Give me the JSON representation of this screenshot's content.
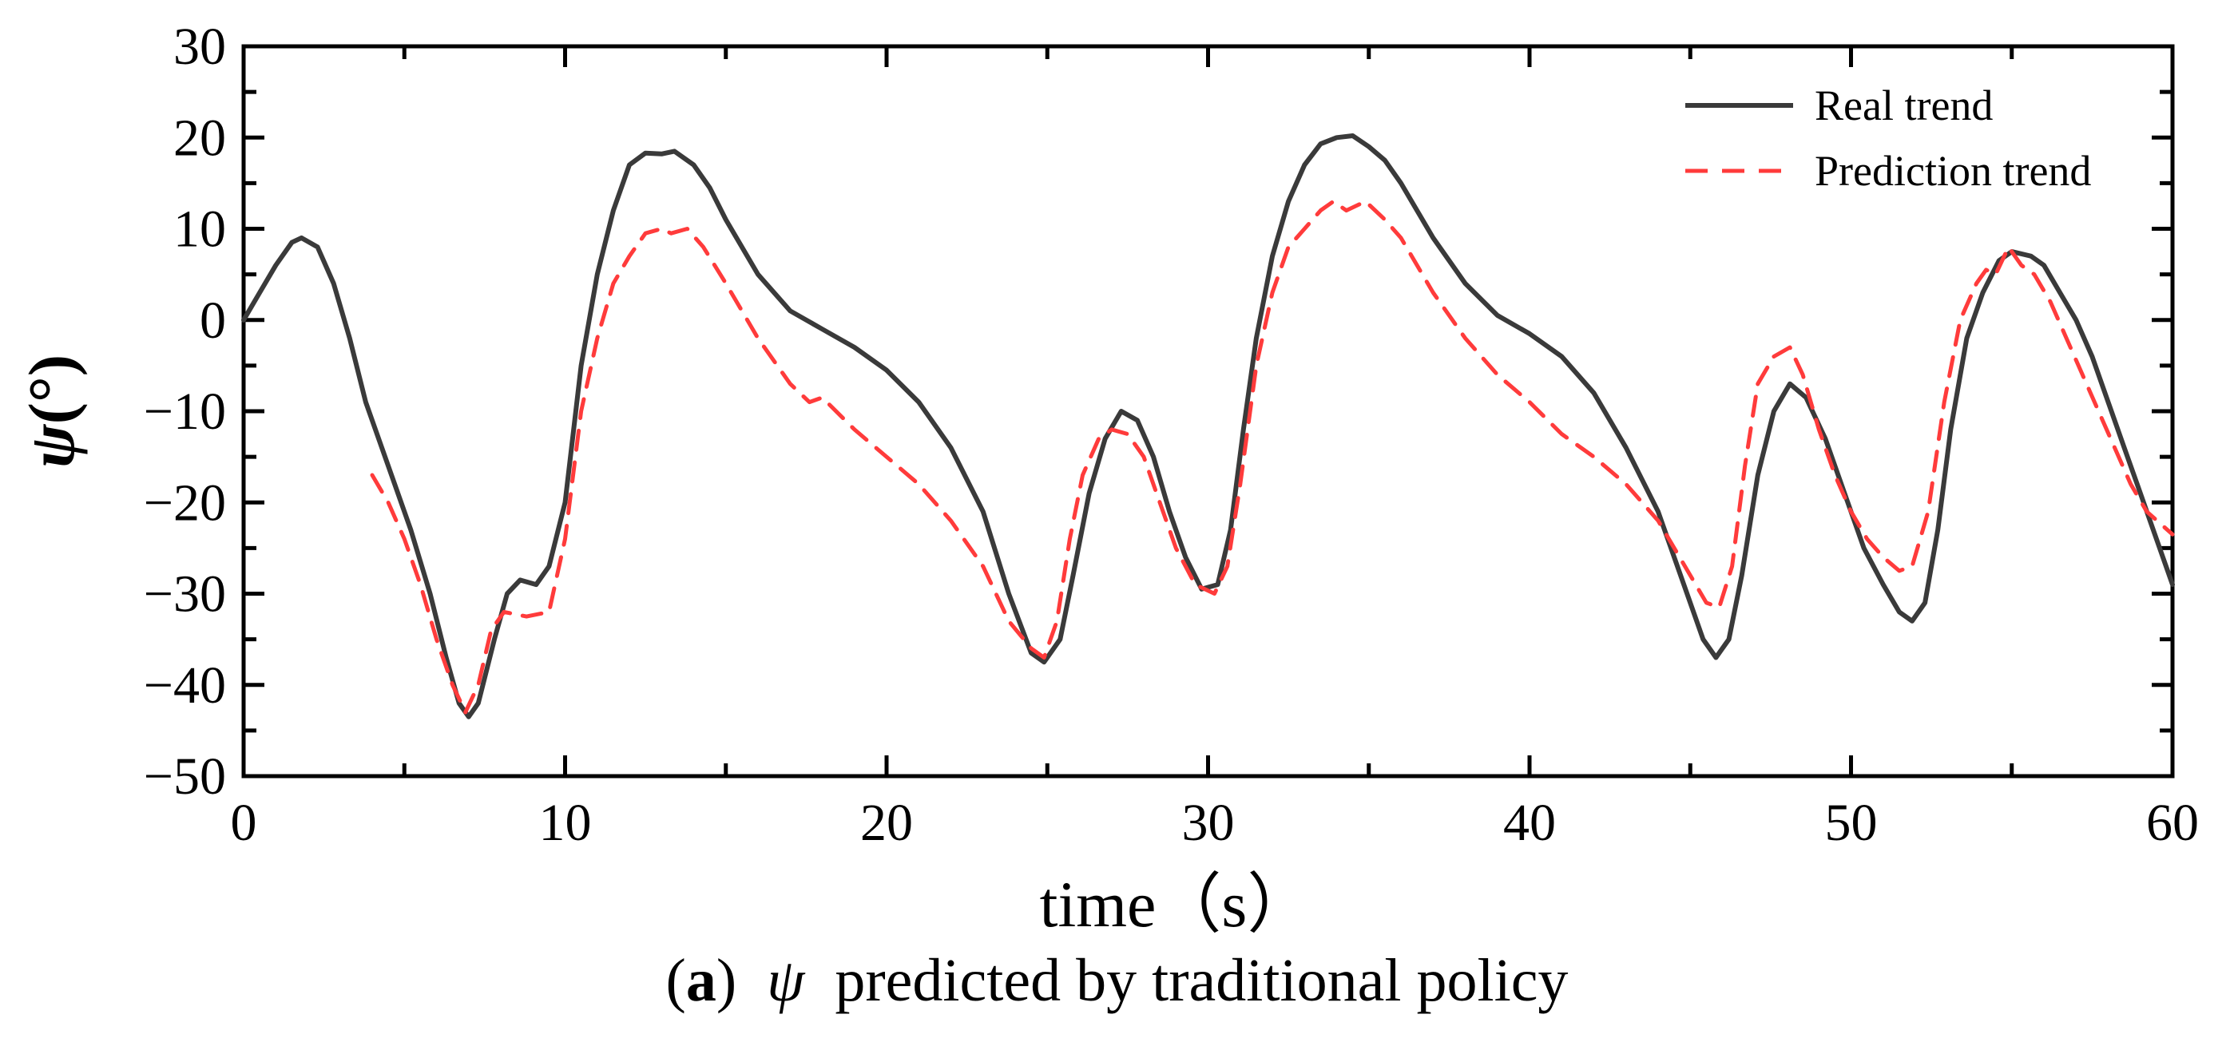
{
  "chart_data": {
    "type": "line",
    "title": "",
    "xlabel": "time（s）",
    "ylabel_symbol": "ψ",
    "ylabel_unit": "(°)",
    "xlim": [
      0,
      60
    ],
    "ylim": [
      -50,
      30
    ],
    "xticks": [
      0,
      10,
      20,
      30,
      40,
      50,
      60
    ],
    "yticks": [
      30,
      20,
      10,
      0,
      -10,
      -20,
      -30,
      -40,
      -50
    ],
    "ytick_labels": [
      "30",
      "20",
      "10",
      "0",
      "−10",
      "−20",
      "−30",
      "−40",
      "−50"
    ],
    "grid": false,
    "legend_position": "top-right",
    "series": [
      {
        "name": "Real trend",
        "color": "#3a3a3a",
        "dash": "solid",
        "points": [
          [
            0,
            0
          ],
          [
            0.5,
            3
          ],
          [
            1,
            6
          ],
          [
            1.5,
            8.5
          ],
          [
            1.8,
            9
          ],
          [
            2.3,
            8
          ],
          [
            2.8,
            4
          ],
          [
            3.3,
            -2
          ],
          [
            3.8,
            -9
          ],
          [
            4.5,
            -16
          ],
          [
            5.2,
            -23
          ],
          [
            5.8,
            -30
          ],
          [
            6.3,
            -37
          ],
          [
            6.7,
            -42
          ],
          [
            7,
            -43.5
          ],
          [
            7.3,
            -42
          ],
          [
            7.8,
            -35
          ],
          [
            8.2,
            -30
          ],
          [
            8.6,
            -28.5
          ],
          [
            9.1,
            -29
          ],
          [
            9.5,
            -27
          ],
          [
            10,
            -20
          ],
          [
            10.5,
            -5
          ],
          [
            11,
            5
          ],
          [
            11.5,
            12
          ],
          [
            12,
            17
          ],
          [
            12.5,
            18.3
          ],
          [
            13,
            18.2
          ],
          [
            13.4,
            18.5
          ],
          [
            14,
            17
          ],
          [
            14.5,
            14.5
          ],
          [
            15,
            11
          ],
          [
            16,
            5
          ],
          [
            17,
            1
          ],
          [
            18,
            -1
          ],
          [
            19,
            -3
          ],
          [
            20,
            -5.5
          ],
          [
            21,
            -9
          ],
          [
            22,
            -14
          ],
          [
            23,
            -21
          ],
          [
            23.8,
            -30
          ],
          [
            24.5,
            -36.5
          ],
          [
            24.9,
            -37.5
          ],
          [
            25.4,
            -35
          ],
          [
            25.8,
            -28
          ],
          [
            26.3,
            -19
          ],
          [
            26.8,
            -13
          ],
          [
            27.3,
            -10
          ],
          [
            27.8,
            -11
          ],
          [
            28.3,
            -15
          ],
          [
            28.8,
            -21
          ],
          [
            29.3,
            -26
          ],
          [
            29.8,
            -29.5
          ],
          [
            30.3,
            -29
          ],
          [
            30.7,
            -23
          ],
          [
            31.1,
            -12
          ],
          [
            31.5,
            -2
          ],
          [
            32,
            7
          ],
          [
            32.5,
            13
          ],
          [
            33,
            17
          ],
          [
            33.5,
            19.3
          ],
          [
            34,
            20
          ],
          [
            34.5,
            20.2
          ],
          [
            35,
            19
          ],
          [
            35.5,
            17.5
          ],
          [
            36,
            15
          ],
          [
            37,
            9
          ],
          [
            38,
            4
          ],
          [
            39,
            0.5
          ],
          [
            40,
            -1.5
          ],
          [
            41,
            -4
          ],
          [
            42,
            -8
          ],
          [
            43,
            -14
          ],
          [
            44,
            -21
          ],
          [
            44.8,
            -29
          ],
          [
            45.4,
            -35
          ],
          [
            45.8,
            -37
          ],
          [
            46.2,
            -35
          ],
          [
            46.6,
            -28
          ],
          [
            47.1,
            -17
          ],
          [
            47.6,
            -10
          ],
          [
            48.1,
            -7
          ],
          [
            48.6,
            -8.5
          ],
          [
            49.2,
            -13
          ],
          [
            49.8,
            -19
          ],
          [
            50.4,
            -25
          ],
          [
            51,
            -29
          ],
          [
            51.5,
            -32
          ],
          [
            51.9,
            -33
          ],
          [
            52.3,
            -31
          ],
          [
            52.7,
            -23
          ],
          [
            53.1,
            -12
          ],
          [
            53.6,
            -2
          ],
          [
            54.1,
            3
          ],
          [
            54.6,
            6.5
          ],
          [
            55,
            7.5
          ],
          [
            55.6,
            7
          ],
          [
            56,
            6
          ],
          [
            56.5,
            3
          ],
          [
            57,
            0
          ],
          [
            57.5,
            -4
          ],
          [
            58,
            -9
          ],
          [
            58.5,
            -14
          ],
          [
            59,
            -19
          ],
          [
            59.5,
            -24
          ],
          [
            60,
            -29
          ]
        ]
      },
      {
        "name": "Prediction trend",
        "color": "#ff3b3b",
        "dash": "dashed",
        "points": [
          [
            4,
            -17
          ],
          [
            4.5,
            -20
          ],
          [
            5,
            -24
          ],
          [
            5.5,
            -29
          ],
          [
            6,
            -35
          ],
          [
            6.5,
            -40
          ],
          [
            6.9,
            -43
          ],
          [
            7.3,
            -40
          ],
          [
            7.7,
            -34
          ],
          [
            8.1,
            -32
          ],
          [
            8.8,
            -32.5
          ],
          [
            9.5,
            -32
          ],
          [
            10,
            -24
          ],
          [
            10.5,
            -10
          ],
          [
            11,
            -2
          ],
          [
            11.5,
            4
          ],
          [
            12,
            7
          ],
          [
            12.5,
            9.5
          ],
          [
            13,
            10
          ],
          [
            13.3,
            9.5
          ],
          [
            13.8,
            10
          ],
          [
            14.3,
            8
          ],
          [
            15,
            4
          ],
          [
            16,
            -2
          ],
          [
            17,
            -7
          ],
          [
            17.6,
            -9
          ],
          [
            18,
            -8.5
          ],
          [
            19,
            -12
          ],
          [
            20,
            -15
          ],
          [
            21,
            -18
          ],
          [
            22,
            -22
          ],
          [
            23,
            -27
          ],
          [
            23.8,
            -33
          ],
          [
            24.5,
            -36
          ],
          [
            24.9,
            -37
          ],
          [
            25.3,
            -33
          ],
          [
            25.7,
            -24
          ],
          [
            26.1,
            -17
          ],
          [
            26.6,
            -13
          ],
          [
            27,
            -12
          ],
          [
            27.5,
            -12.5
          ],
          [
            28,
            -15
          ],
          [
            28.5,
            -20
          ],
          [
            29,
            -25
          ],
          [
            29.6,
            -29
          ],
          [
            30.2,
            -30
          ],
          [
            30.6,
            -27
          ],
          [
            31,
            -18
          ],
          [
            31.5,
            -5
          ],
          [
            32,
            3
          ],
          [
            32.5,
            8
          ],
          [
            33,
            10
          ],
          [
            33.5,
            12
          ],
          [
            33.9,
            13
          ],
          [
            34.3,
            12
          ],
          [
            34.9,
            13
          ],
          [
            35.5,
            11
          ],
          [
            36,
            9
          ],
          [
            37,
            3
          ],
          [
            38,
            -2
          ],
          [
            39,
            -6
          ],
          [
            40,
            -9
          ],
          [
            41,
            -12.5
          ],
          [
            42,
            -15
          ],
          [
            43,
            -18
          ],
          [
            44,
            -22
          ],
          [
            45,
            -28
          ],
          [
            45.5,
            -31
          ],
          [
            45.9,
            -31.5
          ],
          [
            46.3,
            -27
          ],
          [
            46.7,
            -16
          ],
          [
            47.1,
            -7
          ],
          [
            47.6,
            -4
          ],
          [
            48.1,
            -3
          ],
          [
            48.5,
            -6
          ],
          [
            49,
            -12
          ],
          [
            49.5,
            -17
          ],
          [
            50,
            -21
          ],
          [
            50.5,
            -24
          ],
          [
            51,
            -26
          ],
          [
            51.5,
            -27.5
          ],
          [
            51.9,
            -27
          ],
          [
            52.4,
            -21
          ],
          [
            52.9,
            -9
          ],
          [
            53.4,
            0
          ],
          [
            53.9,
            4
          ],
          [
            54.2,
            5.5
          ],
          [
            54.5,
            5
          ],
          [
            54.9,
            8
          ],
          [
            55.3,
            6
          ],
          [
            55.7,
            5
          ],
          [
            56.2,
            2
          ],
          [
            56.7,
            -2
          ],
          [
            57.2,
            -6
          ],
          [
            57.7,
            -10
          ],
          [
            58.2,
            -14
          ],
          [
            58.7,
            -18
          ],
          [
            59.2,
            -21
          ],
          [
            60,
            -23.5
          ]
        ]
      }
    ]
  },
  "caption": {
    "label": "a",
    "open_paren": "(",
    "close_paren": ")",
    "symbol": "ψ",
    "text": "predicted by traditional policy"
  }
}
